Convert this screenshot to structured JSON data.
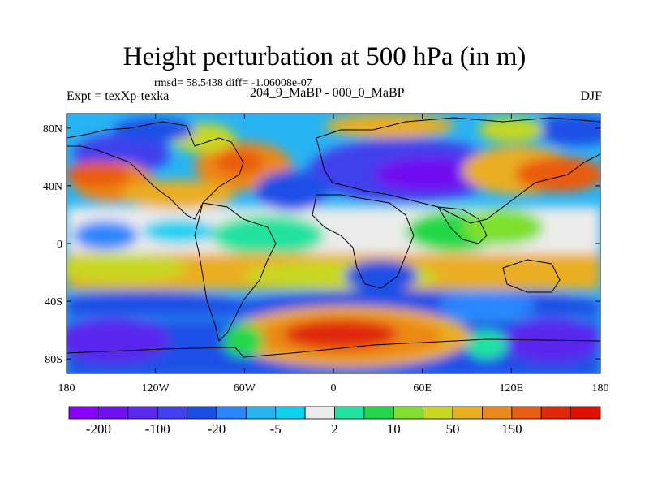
{
  "map": {
    "title": "Height perturbation at 500 hPa (in m)",
    "stats": "rmsd= 58.5438 diff= -1.06008e-07",
    "left_label": "Expt = texXp-texka",
    "center_label": "204_9_MaBP - 000_0_MaBP",
    "right_label": "DJF",
    "lon_ticks": [
      "180",
      "120W",
      "60W",
      "0",
      "60E",
      "120E",
      "180"
    ],
    "lat_ticks": [
      "80N",
      "40N",
      "0",
      "40S",
      "80S"
    ],
    "lon_range": [
      -180,
      180
    ],
    "lat_range": [
      -90,
      90
    ]
  },
  "colorbar": {
    "colors": [
      "#8c00ff",
      "#6f10f0",
      "#5a28ee",
      "#4040ec",
      "#1a4fe6",
      "#2a86ff",
      "#27b4f2",
      "#10d0f0",
      "#ececec",
      "#22e2a0",
      "#22d84a",
      "#7ee02a",
      "#c8d820",
      "#eaae20",
      "#ec8818",
      "#ea5c10",
      "#e02808",
      "#e01000"
    ],
    "labels": [
      "-200",
      "-100",
      "-20",
      "-5",
      "2",
      "10",
      "50",
      "150"
    ]
  }
}
